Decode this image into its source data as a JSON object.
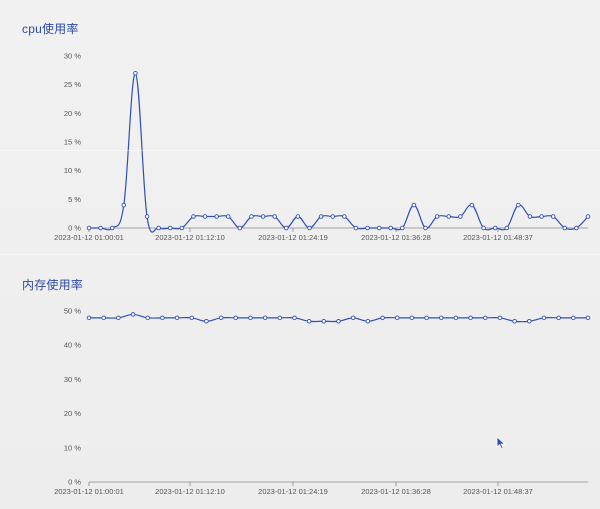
{
  "colors": {
    "accent": "#2b4aa8",
    "line": "#2f4fb5",
    "axis": "#888888",
    "background": "#efefef"
  },
  "charts": {
    "cpu": {
      "title": "cpu使用率"
    },
    "memory": {
      "title": "内存使用率"
    }
  },
  "chart_data": [
    {
      "type": "line",
      "title": "cpu使用率",
      "xlabel": "",
      "ylabel": "",
      "ylim": [
        0,
        30
      ],
      "y_ticks": [
        "0 %",
        "5 %",
        "10 %",
        "15 %",
        "20 %",
        "25 %",
        "30 %"
      ],
      "x_tick_labels": [
        "2023-01-12 01:00:01",
        "2023-01-12 01:12:10",
        "2023-01-12 01:24:19",
        "2023-01-12 01:36:28",
        "2023-01-12 01:48:37"
      ],
      "grid": false,
      "legend": "none",
      "series": [
        {
          "values": [
            0,
            0,
            0,
            4,
            27,
            2,
            0,
            0,
            0,
            2,
            2,
            2,
            2,
            0,
            2,
            2,
            2,
            0,
            2,
            0,
            2,
            2,
            2,
            0,
            0,
            0,
            0,
            0,
            4,
            0,
            2,
            2,
            2,
            4,
            0,
            0,
            0,
            4,
            2,
            2,
            2,
            0,
            0,
            2
          ]
        }
      ]
    },
    {
      "type": "line",
      "title": "内存使用率",
      "xlabel": "",
      "ylabel": "",
      "ylim": [
        0,
        50
      ],
      "y_ticks": [
        "0 %",
        "10 %",
        "20 %",
        "30 %",
        "40 %",
        "50 %"
      ],
      "x_tick_labels": [
        "2023-01-12 01:00:01",
        "2023-01-12 01:12:10",
        "2023-01-12 01:24:19",
        "2023-01-12 01:36:28",
        "2023-01-12 01:48:37"
      ],
      "grid": false,
      "legend": "none",
      "series": [
        {
          "values": [
            48,
            48,
            48,
            49,
            48,
            48,
            48,
            48,
            47,
            48,
            48,
            48,
            48,
            48,
            48,
            47,
            47,
            47,
            48,
            47,
            48,
            48,
            48,
            48,
            48,
            48,
            48,
            48,
            48,
            47,
            47,
            48,
            48,
            48,
            48
          ]
        }
      ]
    }
  ]
}
